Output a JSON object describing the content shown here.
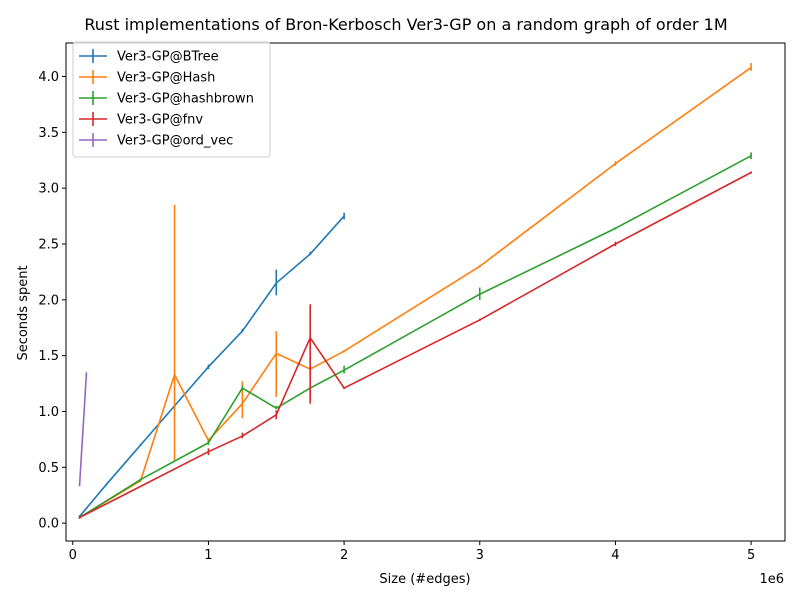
{
  "chart_data": {
    "type": "line",
    "title": "Rust implementations of Bron-Kerbosch Ver3-GP on a random graph of order 1M",
    "xlabel": "Size (#edges)",
    "ylabel": "Seconds spent",
    "x_offset_label": "1e6",
    "xlim": [
      -50000,
      5250000
    ],
    "ylim": [
      -0.16,
      4.3
    ],
    "x_ticks": [
      0,
      1000000,
      2000000,
      3000000,
      4000000,
      5000000
    ],
    "x_tick_labels": [
      "0",
      "1",
      "2",
      "3",
      "4",
      "5"
    ],
    "y_ticks": [
      0.0,
      0.5,
      1.0,
      1.5,
      2.0,
      2.5,
      3.0,
      3.5,
      4.0
    ],
    "y_tick_labels": [
      "0.0",
      "0.5",
      "1.0",
      "1.5",
      "2.0",
      "2.5",
      "3.0",
      "3.5",
      "4.0"
    ],
    "grid": false,
    "legend_position": "top-left",
    "series": [
      {
        "name": "Ver3-GP@BTree",
        "color": "#1f77b4",
        "x": [
          50000,
          250000,
          500000,
          750000,
          1000000,
          1250000,
          1500000,
          1750000,
          2000000
        ],
        "y": [
          0.06,
          0.35,
          0.7,
          1.05,
          1.4,
          1.72,
          2.15,
          2.41,
          2.75
        ],
        "err_low": [
          0.05,
          0.34,
          0.69,
          1.04,
          1.38,
          1.71,
          2.04,
          2.4,
          2.72
        ],
        "err_high": [
          0.07,
          0.36,
          0.71,
          1.06,
          1.42,
          1.74,
          2.27,
          2.43,
          2.78
        ]
      },
      {
        "name": "Ver3-GP@Hash",
        "color": "#ff7f0e",
        "x": [
          50000,
          500000,
          750000,
          1000000,
          1250000,
          1500000,
          1750000,
          2000000,
          3000000,
          4000000,
          5000000
        ],
        "y": [
          0.05,
          0.38,
          1.33,
          0.74,
          1.07,
          1.52,
          1.38,
          1.54,
          2.3,
          3.22,
          4.08
        ],
        "err_low": [
          0.04,
          0.37,
          0.55,
          0.72,
          0.94,
          1.13,
          1.37,
          1.53,
          2.29,
          3.2,
          4.05
        ],
        "err_high": [
          0.06,
          0.39,
          2.85,
          0.76,
          1.27,
          1.72,
          1.4,
          1.55,
          2.31,
          3.24,
          4.12
        ]
      },
      {
        "name": "Ver3-GP@hashbrown",
        "color": "#2ca02c",
        "x": [
          50000,
          500000,
          1000000,
          1250000,
          1500000,
          1750000,
          2000000,
          3000000,
          4000000,
          5000000
        ],
        "y": [
          0.05,
          0.39,
          0.72,
          1.21,
          1.03,
          1.21,
          1.37,
          2.05,
          2.64,
          3.29
        ],
        "err_low": [
          0.04,
          0.38,
          0.7,
          1.19,
          1.02,
          1.2,
          1.34,
          2.0,
          2.63,
          3.26
        ],
        "err_high": [
          0.06,
          0.4,
          0.74,
          1.23,
          1.05,
          1.22,
          1.41,
          2.11,
          2.65,
          3.32
        ]
      },
      {
        "name": "Ver3-GP@fnv",
        "color": "#d62728",
        "x": [
          50000,
          1000000,
          1250000,
          1500000,
          1750000,
          2000000,
          3000000,
          4000000,
          5000000
        ],
        "y": [
          0.05,
          0.64,
          0.78,
          0.97,
          1.66,
          1.21,
          1.82,
          2.5,
          3.14
        ],
        "err_low": [
          0.04,
          0.61,
          0.76,
          0.93,
          1.07,
          1.2,
          1.81,
          2.48,
          3.13
        ],
        "err_high": [
          0.06,
          0.67,
          0.81,
          1.01,
          1.96,
          1.22,
          1.83,
          2.52,
          3.15
        ]
      },
      {
        "name": "Ver3-GP@ord_vec",
        "color": "#9467bd",
        "x": [
          50000,
          100000
        ],
        "y": [
          0.34,
          1.33
        ],
        "err_low": [
          0.33,
          1.31
        ],
        "err_high": [
          0.35,
          1.35
        ]
      }
    ]
  }
}
